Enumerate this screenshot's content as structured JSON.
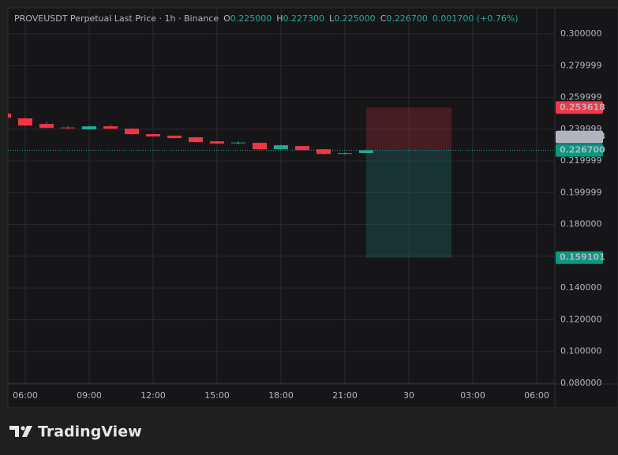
{
  "chart_data": {
    "type": "candlestick",
    "title": "PROVEUSDT Perpetual Last Price · 1h · Binance",
    "ohlc_header": [
      {
        "key": "O",
        "label": "0.225000"
      },
      {
        "key": "H",
        "label": "0.227300"
      },
      {
        "key": "L",
        "label": "0.225000"
      },
      {
        "key": "C",
        "label": "0.226700"
      }
    ],
    "change": "0.001700 (+0.76%)",
    "x": [
      5,
      6,
      7,
      8,
      9,
      10,
      11,
      12,
      13,
      14,
      15,
      16,
      17,
      18,
      19,
      20,
      21,
      22
    ],
    "open": [
      0.2498,
      0.2468,
      0.2433,
      0.2411,
      0.2399,
      0.2418,
      0.2403,
      0.2369,
      0.2359,
      0.2349,
      0.2324,
      0.2311,
      0.2314,
      0.2274,
      0.2294,
      0.2274,
      0.2244,
      0.225
    ],
    "high": [
      0.2503,
      0.2473,
      0.2448,
      0.2418,
      0.2421,
      0.2428,
      0.2406,
      0.2371,
      0.2361,
      0.2351,
      0.2326,
      0.2324,
      0.2316,
      0.2301,
      0.2296,
      0.2276,
      0.2254,
      0.2273
    ],
    "low": [
      0.2468,
      0.2418,
      0.2406,
      0.2401,
      0.2396,
      0.2401,
      0.2366,
      0.2351,
      0.2341,
      0.2316,
      0.2306,
      0.2304,
      0.2271,
      0.2271,
      0.2264,
      0.2239,
      0.2239,
      0.225
    ],
    "close": [
      0.2473,
      0.2423,
      0.2408,
      0.2406,
      0.2418,
      0.2403,
      0.2369,
      0.2354,
      0.2344,
      0.2319,
      0.2309,
      0.2316,
      0.2274,
      0.2299,
      0.2269,
      0.2244,
      0.2249,
      0.2267
    ],
    "up_color": "#22ab94",
    "down_color": "#f23645",
    "xlim": [
      5.185,
      30.852
    ],
    "xticks": [
      {
        "value": 6,
        "label": "06:00"
      },
      {
        "value": 9,
        "label": "09:00"
      },
      {
        "value": 12,
        "label": "12:00"
      },
      {
        "value": 15,
        "label": "15:00"
      },
      {
        "value": 18,
        "label": "18:00"
      },
      {
        "value": 21,
        "label": "21:00"
      },
      {
        "value": 24,
        "label": "30"
      },
      {
        "value": 27,
        "label": "03:00"
      },
      {
        "value": 30,
        "label": "06:00"
      }
    ],
    "ylim": [
      0.0795,
      0.3164
    ],
    "yticks": [
      {
        "value": 0.3,
        "label": "0.300000"
      },
      0.279999,
      0.259999,
      0.239999,
      0.219999,
      0.199999,
      {
        "value": 0.18,
        "label": "0.180000"
      },
      {
        "value": 0.16,
        "label": "0.160000"
      },
      {
        "value": 0.14,
        "label": "0.140000"
      },
      {
        "value": 0.12,
        "label": "0.120000"
      },
      {
        "value": 0.1,
        "label": "0.100000"
      },
      {
        "value": 0.08,
        "label": "0.080000"
      }
    ],
    "grid": true,
    "last_price": {
      "value": 0.2267,
      "label": "0.226700"
    },
    "position": {
      "entry": 0.227138,
      "stop": 0.253618,
      "target": 0.159101,
      "x_start": 22,
      "x_end": 26
    },
    "brand": "TradingView"
  }
}
